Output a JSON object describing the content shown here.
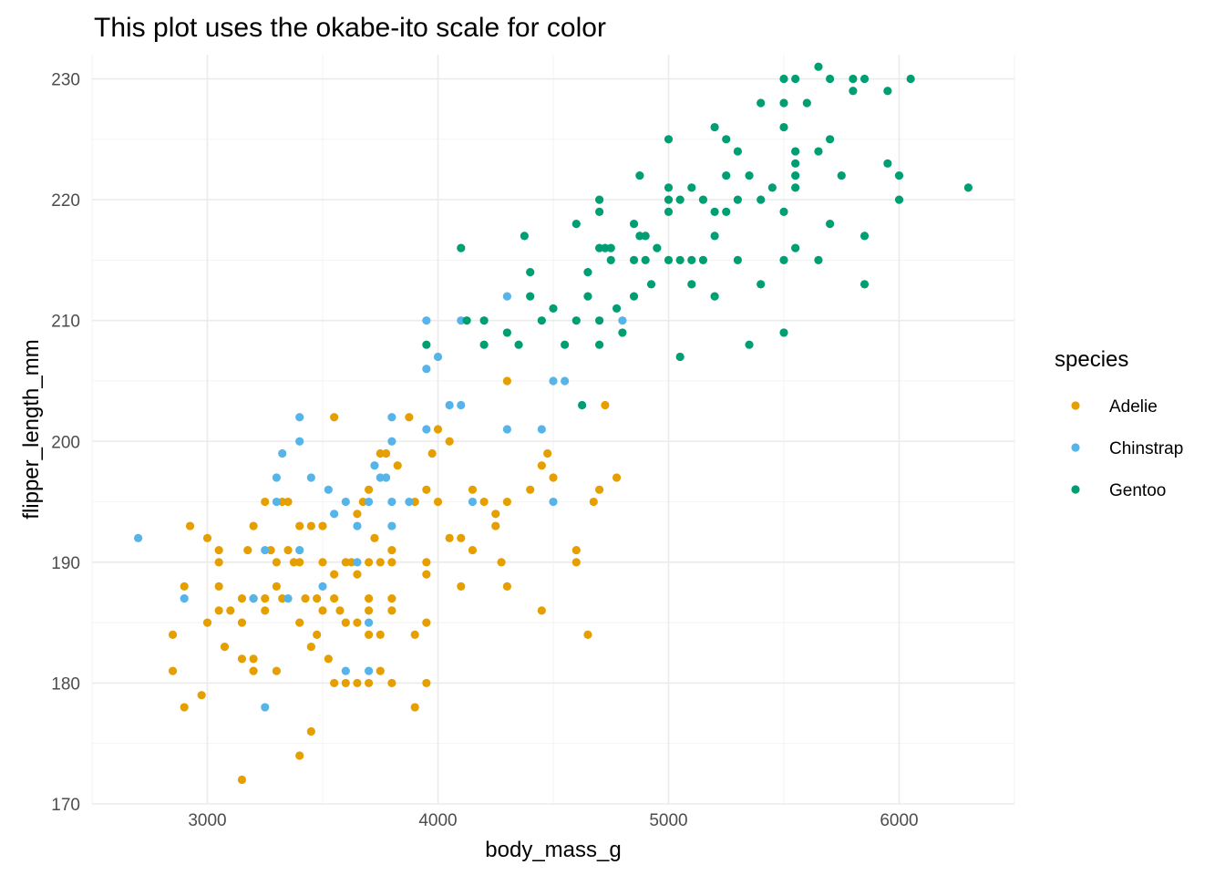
{
  "chart_data": {
    "type": "scatter",
    "title": "This plot uses the okabe-ito scale for color",
    "xlabel": "body_mass_g",
    "ylabel": "flipper_length_mm",
    "xlim": [
      2500,
      6500
    ],
    "ylim": [
      170,
      232
    ],
    "x_ticks": [
      3000,
      4000,
      5000,
      6000
    ],
    "y_ticks": [
      170,
      180,
      190,
      200,
      210,
      220,
      230
    ],
    "grid": true,
    "legend": {
      "title": "species",
      "position": "right"
    },
    "series": [
      {
        "name": "Adelie",
        "color": "#E69F00",
        "points": [
          [
            2850,
            181
          ],
          [
            2850,
            184
          ],
          [
            2900,
            178
          ],
          [
            2900,
            188
          ],
          [
            2925,
            193
          ],
          [
            2975,
            179
          ],
          [
            3000,
            185
          ],
          [
            3000,
            192
          ],
          [
            3050,
            186
          ],
          [
            3050,
            188
          ],
          [
            3050,
            190
          ],
          [
            3050,
            191
          ],
          [
            3075,
            183
          ],
          [
            3100,
            186
          ],
          [
            3150,
            172
          ],
          [
            3150,
            182
          ],
          [
            3150,
            185
          ],
          [
            3150,
            187
          ],
          [
            3175,
            191
          ],
          [
            3200,
            181
          ],
          [
            3200,
            182
          ],
          [
            3200,
            187
          ],
          [
            3200,
            193
          ],
          [
            3250,
            186
          ],
          [
            3250,
            187
          ],
          [
            3250,
            195
          ],
          [
            3275,
            191
          ],
          [
            3300,
            181
          ],
          [
            3300,
            188
          ],
          [
            3300,
            190
          ],
          [
            3325,
            195
          ],
          [
            3325,
            187
          ],
          [
            3350,
            191
          ],
          [
            3350,
            195
          ],
          [
            3375,
            190
          ],
          [
            3400,
            174
          ],
          [
            3400,
            185
          ],
          [
            3400,
            190
          ],
          [
            3400,
            193
          ],
          [
            3425,
            187
          ],
          [
            3450,
            176
          ],
          [
            3450,
            183
          ],
          [
            3450,
            193
          ],
          [
            3475,
            184
          ],
          [
            3475,
            187
          ],
          [
            3500,
            186
          ],
          [
            3500,
            190
          ],
          [
            3500,
            193
          ],
          [
            3525,
            182
          ],
          [
            3550,
            180
          ],
          [
            3550,
            187
          ],
          [
            3550,
            189
          ],
          [
            3550,
            202
          ],
          [
            3575,
            186
          ],
          [
            3600,
            180
          ],
          [
            3600,
            185
          ],
          [
            3600,
            190
          ],
          [
            3625,
            190
          ],
          [
            3650,
            180
          ],
          [
            3650,
            185
          ],
          [
            3650,
            189
          ],
          [
            3650,
            194
          ],
          [
            3675,
            195
          ],
          [
            3700,
            180
          ],
          [
            3700,
            184
          ],
          [
            3700,
            186
          ],
          [
            3700,
            187
          ],
          [
            3700,
            190
          ],
          [
            3700,
            196
          ],
          [
            3725,
            192
          ],
          [
            3750,
            181
          ],
          [
            3750,
            184
          ],
          [
            3750,
            190
          ],
          [
            3750,
            199
          ],
          [
            3775,
            199
          ],
          [
            3800,
            180
          ],
          [
            3800,
            186
          ],
          [
            3800,
            187
          ],
          [
            3800,
            190
          ],
          [
            3800,
            191
          ],
          [
            3825,
            198
          ],
          [
            3875,
            202
          ],
          [
            3900,
            178
          ],
          [
            3900,
            184
          ],
          [
            3900,
            195
          ],
          [
            3950,
            180
          ],
          [
            3950,
            185
          ],
          [
            3950,
            189
          ],
          [
            3950,
            190
          ],
          [
            3950,
            196
          ],
          [
            3975,
            199
          ],
          [
            4000,
            201
          ],
          [
            4000,
            195
          ],
          [
            4050,
            192
          ],
          [
            4050,
            200
          ],
          [
            4100,
            188
          ],
          [
            4100,
            192
          ],
          [
            4150,
            191
          ],
          [
            4150,
            196
          ],
          [
            4200,
            195
          ],
          [
            4250,
            193
          ],
          [
            4250,
            194
          ],
          [
            4275,
            190
          ],
          [
            4300,
            188
          ],
          [
            4300,
            195
          ],
          [
            4400,
            196
          ],
          [
            4450,
            186
          ],
          [
            4450,
            198
          ],
          [
            4475,
            199
          ],
          [
            4500,
            197
          ],
          [
            4600,
            191
          ],
          [
            4600,
            190
          ],
          [
            4650,
            184
          ],
          [
            4675,
            195
          ],
          [
            4700,
            196
          ],
          [
            4725,
            203
          ],
          [
            4775,
            197
          ],
          [
            4300,
            205
          ]
        ]
      },
      {
        "name": "Chinstrap",
        "color": "#56B4E9",
        "points": [
          [
            2700,
            192
          ],
          [
            2900,
            187
          ],
          [
            3200,
            187
          ],
          [
            3250,
            178
          ],
          [
            3250,
            191
          ],
          [
            3300,
            197
          ],
          [
            3300,
            195
          ],
          [
            3325,
            199
          ],
          [
            3350,
            187
          ],
          [
            3400,
            191
          ],
          [
            3400,
            200
          ],
          [
            3400,
            202
          ],
          [
            3450,
            197
          ],
          [
            3500,
            188
          ],
          [
            3525,
            196
          ],
          [
            3550,
            194
          ],
          [
            3600,
            181
          ],
          [
            3600,
            195
          ],
          [
            3650,
            190
          ],
          [
            3650,
            193
          ],
          [
            3700,
            181
          ],
          [
            3700,
            185
          ],
          [
            3700,
            195
          ],
          [
            3725,
            198
          ],
          [
            3750,
            197
          ],
          [
            3775,
            197
          ],
          [
            3800,
            193
          ],
          [
            3800,
            195
          ],
          [
            3800,
            200
          ],
          [
            3800,
            202
          ],
          [
            3875,
            195
          ],
          [
            3950,
            201
          ],
          [
            3950,
            206
          ],
          [
            3950,
            210
          ],
          [
            4000,
            207
          ],
          [
            4050,
            203
          ],
          [
            4100,
            203
          ],
          [
            4100,
            210
          ],
          [
            4150,
            195
          ],
          [
            4300,
            212
          ],
          [
            4300,
            201
          ],
          [
            4450,
            201
          ],
          [
            4500,
            195
          ],
          [
            4500,
            205
          ],
          [
            4550,
            205
          ],
          [
            4800,
            210
          ]
        ]
      },
      {
        "name": "Gentoo",
        "color": "#009E73",
        "points": [
          [
            3950,
            208
          ],
          [
            4100,
            216
          ],
          [
            4125,
            210
          ],
          [
            4200,
            210
          ],
          [
            4200,
            208
          ],
          [
            4300,
            209
          ],
          [
            4350,
            208
          ],
          [
            4375,
            217
          ],
          [
            4400,
            214
          ],
          [
            4400,
            212
          ],
          [
            4450,
            210
          ],
          [
            4500,
            211
          ],
          [
            4550,
            208
          ],
          [
            4600,
            218
          ],
          [
            4600,
            210
          ],
          [
            4625,
            203
          ],
          [
            4650,
            212
          ],
          [
            4650,
            214
          ],
          [
            4700,
            208
          ],
          [
            4700,
            210
          ],
          [
            4700,
            216
          ],
          [
            4700,
            219
          ],
          [
            4700,
            220
          ],
          [
            4725,
            216
          ],
          [
            4750,
            215
          ],
          [
            4750,
            216
          ],
          [
            4775,
            211
          ],
          [
            4800,
            209
          ],
          [
            4850,
            212
          ],
          [
            4850,
            215
          ],
          [
            4850,
            218
          ],
          [
            4875,
            217
          ],
          [
            4875,
            222
          ],
          [
            4900,
            215
          ],
          [
            4900,
            217
          ],
          [
            4925,
            213
          ],
          [
            4950,
            216
          ],
          [
            5000,
            215
          ],
          [
            5000,
            219
          ],
          [
            5000,
            220
          ],
          [
            5000,
            221
          ],
          [
            5000,
            225
          ],
          [
            5050,
            207
          ],
          [
            5050,
            215
          ],
          [
            5050,
            220
          ],
          [
            5100,
            213
          ],
          [
            5100,
            215
          ],
          [
            5100,
            221
          ],
          [
            5150,
            215
          ],
          [
            5150,
            220
          ],
          [
            5200,
            212
          ],
          [
            5200,
            217
          ],
          [
            5200,
            219
          ],
          [
            5200,
            226
          ],
          [
            5250,
            219
          ],
          [
            5250,
            222
          ],
          [
            5250,
            225
          ],
          [
            5300,
            215
          ],
          [
            5300,
            220
          ],
          [
            5300,
            224
          ],
          [
            5350,
            208
          ],
          [
            5350,
            222
          ],
          [
            5400,
            213
          ],
          [
            5400,
            220
          ],
          [
            5400,
            228
          ],
          [
            5450,
            221
          ],
          [
            5500,
            209
          ],
          [
            5500,
            215
          ],
          [
            5500,
            219
          ],
          [
            5500,
            226
          ],
          [
            5500,
            228
          ],
          [
            5500,
            230
          ],
          [
            5550,
            216
          ],
          [
            5550,
            221
          ],
          [
            5550,
            222
          ],
          [
            5550,
            223
          ],
          [
            5550,
            224
          ],
          [
            5550,
            230
          ],
          [
            5600,
            228
          ],
          [
            5650,
            215
          ],
          [
            5650,
            224
          ],
          [
            5650,
            231
          ],
          [
            5700,
            218
          ],
          [
            5700,
            225
          ],
          [
            5700,
            230
          ],
          [
            5750,
            222
          ],
          [
            5800,
            229
          ],
          [
            5800,
            230
          ],
          [
            5850,
            213
          ],
          [
            5850,
            217
          ],
          [
            5850,
            230
          ],
          [
            5950,
            223
          ],
          [
            5950,
            229
          ],
          [
            6000,
            220
          ],
          [
            6000,
            222
          ],
          [
            6050,
            230
          ],
          [
            6300,
            221
          ]
        ]
      }
    ]
  }
}
